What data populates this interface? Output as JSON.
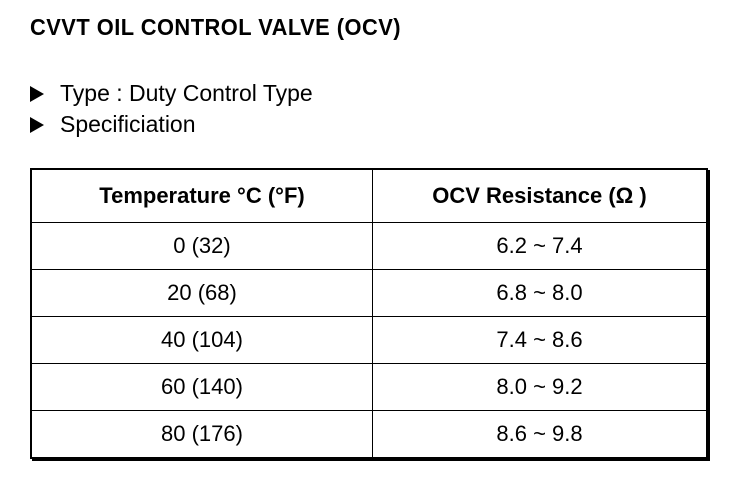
{
  "header": {
    "title": "CVVT OIL CONTROL VALVE (OCV)"
  },
  "bullets": [
    "Type : Duty Control Type",
    "Specificiation"
  ],
  "table": {
    "columns": [
      "Temperature °C (°F)",
      "OCV Resistance (Ω )"
    ],
    "rows": [
      [
        "0 (32)",
        "6.2 ~ 7.4"
      ],
      [
        "20 (68)",
        "6.8 ~ 8.0"
      ],
      [
        "40 (104)",
        "7.4 ~ 8.6"
      ],
      [
        "60 (140)",
        "8.0 ~ 9.2"
      ],
      [
        "80 (176)",
        "8.6 ~ 9.8"
      ]
    ]
  }
}
